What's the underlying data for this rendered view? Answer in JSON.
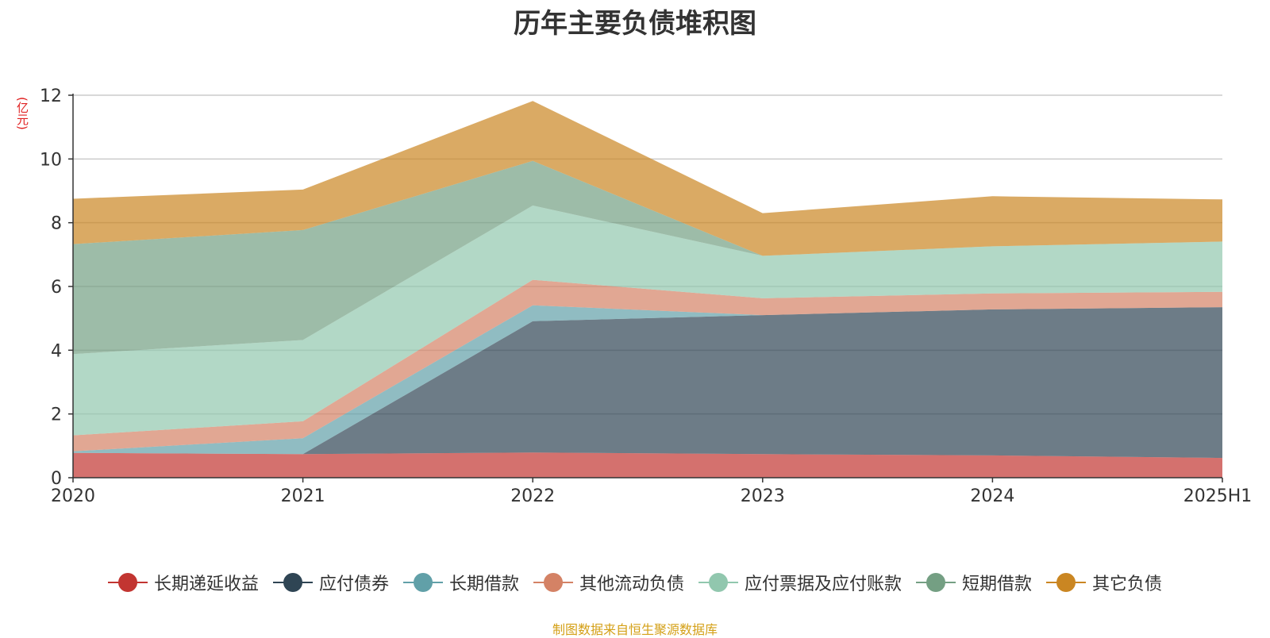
{
  "chart_data": {
    "type": "area",
    "stacked": true,
    "title": "历年主要负债堆积图",
    "unit_label": "(亿元)",
    "categories": [
      "2020",
      "2021",
      "2022",
      "2023",
      "2024",
      "2025H1"
    ],
    "ylim": [
      0,
      12
    ],
    "yticks": [
      0,
      2,
      4,
      6,
      8,
      10,
      12
    ],
    "grid": true,
    "legend_position": "bottom",
    "series": [
      {
        "name": "长期递延收益",
        "color": "#c23531",
        "values": [
          0.78,
          0.74,
          0.79,
          0.74,
          0.7,
          0.62
        ]
      },
      {
        "name": "应付债券",
        "color": "#2f4554",
        "values": [
          0.0,
          0.0,
          4.12,
          4.36,
          4.58,
          4.73
        ]
      },
      {
        "name": "长期借款",
        "color": "#61a0a8",
        "values": [
          0.05,
          0.5,
          0.5,
          0.0,
          0.0,
          0.0
        ]
      },
      {
        "name": "其他流动负债",
        "color": "#d48265",
        "values": [
          0.5,
          0.53,
          0.8,
          0.53,
          0.5,
          0.48
        ]
      },
      {
        "name": "应付票据及应付账款",
        "color": "#91c7ae",
        "values": [
          2.55,
          2.55,
          2.33,
          1.33,
          1.48,
          1.58
        ]
      },
      {
        "name": "短期借款",
        "color": "#749f83",
        "values": [
          3.45,
          3.45,
          1.4,
          0.0,
          0.0,
          0.0
        ]
      },
      {
        "name": "其它负债",
        "color": "#ca8622",
        "values": [
          1.42,
          1.27,
          1.88,
          1.34,
          1.57,
          1.32
        ]
      }
    ]
  },
  "footer": {
    "source_note": "制图数据来自恒生聚源数据库"
  }
}
